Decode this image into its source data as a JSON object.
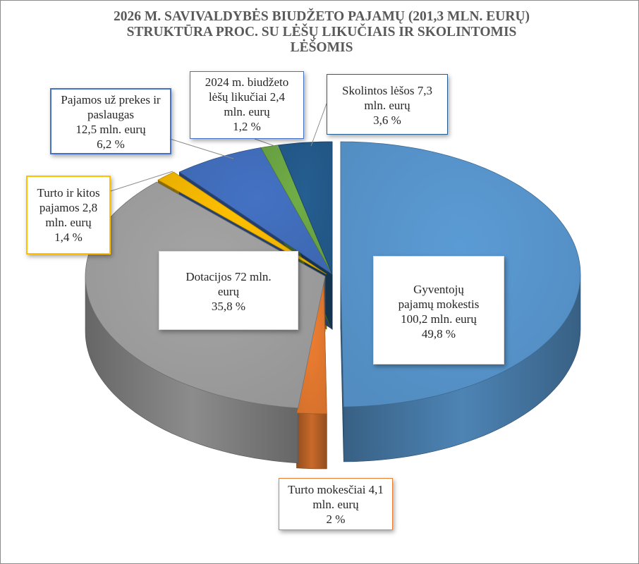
{
  "chart_data": {
    "type": "pie",
    "title_lines": [
      "2026 M. SAVIVALDYBĖS BIUDŽETO PAJAMŲ (201,3  MLN. EURŲ)",
      "STRUKTŪRA PROC. SU  LĖŠŲ LIKUČIAIS IR SKOLINTOMIS",
      "LĖŠOMIS"
    ],
    "slices": [
      {
        "key": "gyventoju",
        "value": 49.8,
        "color": "#5b9bd5",
        "exploded": true,
        "label_lines": [
          "Gyventojų",
          "pajamų mokestis",
          "100,2 mln. eurų",
          "49,8 %"
        ]
      },
      {
        "key": "turto_mokesciai",
        "value": 2.0,
        "color": "#ed7d31",
        "exploded": true,
        "label_lines": [
          "Turto mokesčiai 4,1",
          "mln. eurų",
          "2 %"
        ]
      },
      {
        "key": "dotacijos",
        "value": 35.8,
        "color": "#a5a5a5",
        "exploded": true,
        "label_lines": [
          "Dotacijos 72 mln.",
          "eurų",
          "35,8 %"
        ]
      },
      {
        "key": "turto_ir_kitos",
        "value": 1.4,
        "color": "#ffc000",
        "exploded": true,
        "label_lines": [
          "Turto ir kitos",
          "pajamos 2,8",
          "mln. eurų",
          "1,4 %"
        ]
      },
      {
        "key": "prekes_paslaugas",
        "value": 6.2,
        "color": "#4472c4",
        "exploded": false,
        "label_lines": [
          "Pajamos už prekes ir",
          "paslaugas",
          "12,5 mln. eurų",
          "6,2 %"
        ]
      },
      {
        "key": "likuciai",
        "value": 1.2,
        "color": "#70ad47",
        "exploded": false,
        "label_lines": [
          "2024 m. biudžeto",
          "lėšų likučiai 2,4",
          "mln.  eurų",
          "1,2 %"
        ]
      },
      {
        "key": "skolintos",
        "value": 3.6,
        "color": "#255e91",
        "exploded": false,
        "label_lines": [
          "Skolintos lėšos 7,3",
          "mln. eurų",
          "3,6 %"
        ]
      }
    ],
    "legend": "none",
    "data_labels": "callout boxes"
  }
}
